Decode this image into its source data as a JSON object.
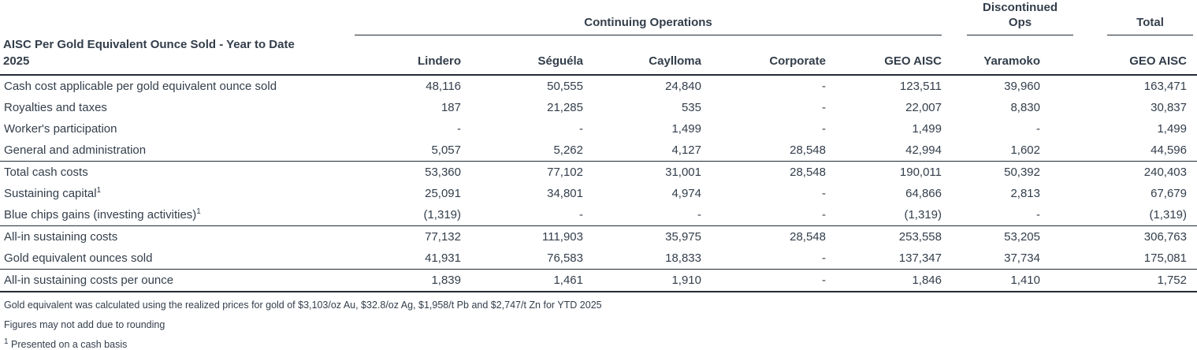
{
  "colors": {
    "text": "#333e4b",
    "line": "#232b33"
  },
  "table": {
    "title_line1": "AISC Per Gold Equivalent Ounce Sold - Year to Date",
    "title_line2": "2025",
    "group_headers": {
      "continuing": "Continuing Operations",
      "discontinued_line1": "Discontinued",
      "discontinued_line2": "Ops",
      "total": "Total"
    },
    "columns": [
      "Lindero",
      "Séguéla",
      "Caylloma",
      "Corporate",
      "GEO AISC",
      "Yaramoko",
      "GEO AISC"
    ],
    "rows": [
      {
        "label": "Cash cost applicable per gold equivalent ounce sold",
        "sup": "",
        "section_start": false,
        "values": [
          "48,116",
          "50,555",
          "24,840",
          "-",
          "123,511",
          "39,960",
          "163,471"
        ]
      },
      {
        "label": "Royalties and taxes",
        "sup": "",
        "section_start": false,
        "values": [
          "187",
          "21,285",
          "535",
          "-",
          "22,007",
          "8,830",
          "30,837"
        ]
      },
      {
        "label": "Worker's participation",
        "sup": "",
        "section_start": false,
        "values": [
          "-",
          "-",
          "1,499",
          "-",
          "1,499",
          "-",
          "1,499"
        ]
      },
      {
        "label": "General and administration",
        "sup": "",
        "section_start": false,
        "values": [
          "5,057",
          "5,262",
          "4,127",
          "28,548",
          "42,994",
          "1,602",
          "44,596"
        ]
      },
      {
        "label": "Total cash costs",
        "sup": "",
        "section_start": true,
        "values": [
          "53,360",
          "77,102",
          "31,001",
          "28,548",
          "190,011",
          "50,392",
          "240,403"
        ]
      },
      {
        "label": "Sustaining capital",
        "sup": "1",
        "section_start": false,
        "values": [
          "25,091",
          "34,801",
          "4,974",
          "-",
          "64,866",
          "2,813",
          "67,679"
        ]
      },
      {
        "label": "Blue chips gains (investing activities)",
        "sup": "1",
        "section_start": false,
        "values": [
          "(1,319)",
          "-",
          "-",
          "-",
          "(1,319)",
          "-",
          "(1,319)"
        ]
      },
      {
        "label": "All-in sustaining costs",
        "sup": "",
        "section_start": true,
        "values": [
          "77,132",
          "111,903",
          "35,975",
          "28,548",
          "253,558",
          "53,205",
          "306,763"
        ]
      },
      {
        "label": "Gold equivalent ounces sold",
        "sup": "",
        "section_start": false,
        "values": [
          "41,931",
          "76,583",
          "18,833",
          "-",
          "137,347",
          "37,734",
          "175,081"
        ]
      },
      {
        "label": "All-in sustaining costs per ounce",
        "sup": "",
        "section_start": true,
        "values": [
          "1,839",
          "1,461",
          "1,910",
          "-",
          "1,846",
          "1,410",
          "1,752"
        ]
      }
    ],
    "footnotes": [
      {
        "sup": "",
        "text": "Gold equivalent was calculated using the realized prices for gold of $3,103/oz Au, $32.8/oz Ag, $1,958/t Pb and $2,747/t Zn for YTD 2025"
      },
      {
        "sup": "",
        "text": "Figures may not add due to rounding"
      },
      {
        "sup": "1",
        "text": "Presented on a cash basis"
      }
    ]
  }
}
